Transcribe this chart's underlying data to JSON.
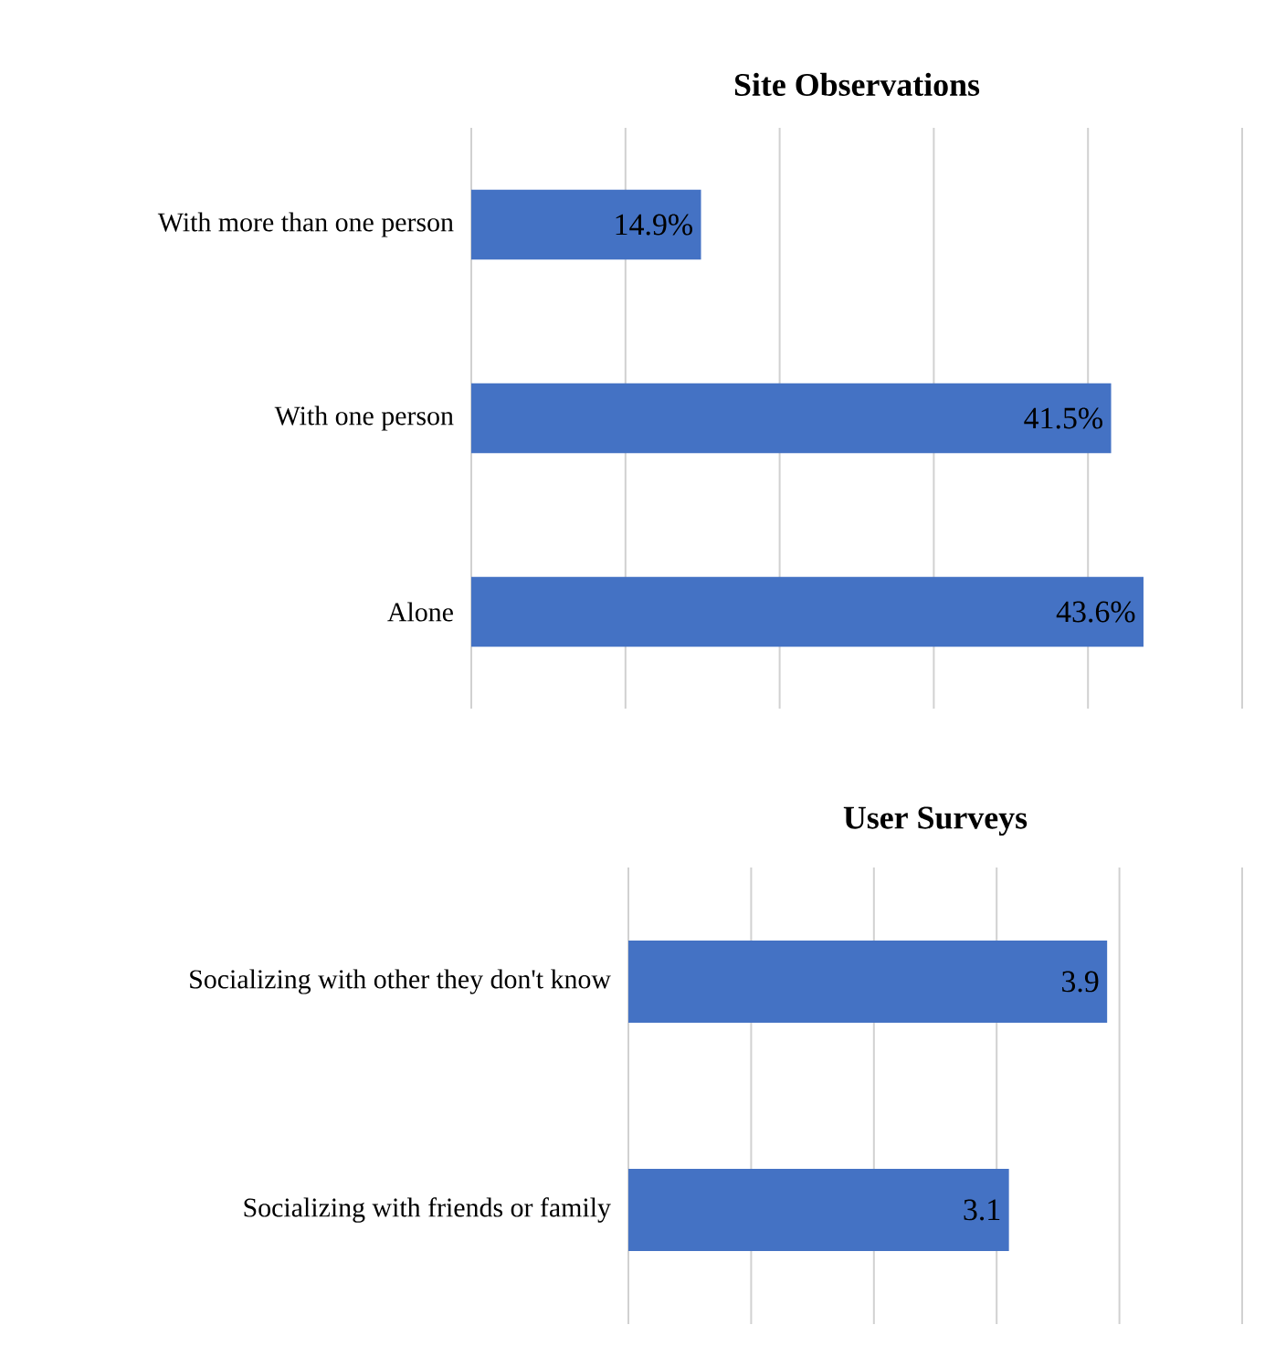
{
  "chart_data": [
    {
      "type": "bar",
      "orientation": "horizontal",
      "title": "Site Observations",
      "categories": [
        "With more than one person",
        "With one person",
        "Alone"
      ],
      "values": [
        14.9,
        41.5,
        43.6
      ],
      "value_labels": [
        "14.9%",
        "41.5%",
        "43.6%"
      ],
      "color": "#4472c4",
      "xlim": [
        0,
        50
      ],
      "xticks": [
        0,
        10,
        20,
        30,
        40,
        50
      ],
      "grid": "x",
      "tick_labels": "y"
    },
    {
      "type": "bar",
      "orientation": "horizontal",
      "title": "User Surveys",
      "categories": [
        "Socializing with other they don't know",
        "Socializing with friends or family"
      ],
      "values": [
        3.9,
        3.1
      ],
      "data_labels": true,
      "color": "#4472c4",
      "xlim": [
        0,
        5
      ],
      "xticks": [
        0,
        1,
        2,
        3,
        4,
        5
      ],
      "grid": "x",
      "tick_labels": "y"
    }
  ]
}
